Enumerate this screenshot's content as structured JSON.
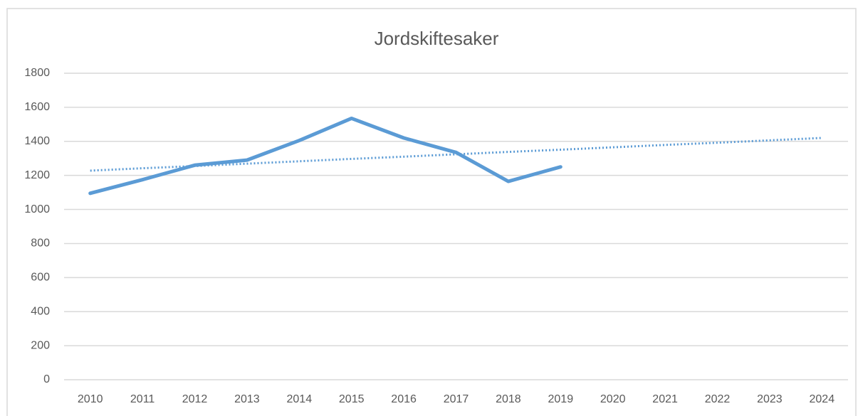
{
  "chart_data": {
    "type": "line",
    "title": "Jordskiftesaker",
    "categories": [
      "2010",
      "2011",
      "2012",
      "2013",
      "2014",
      "2015",
      "2016",
      "2017",
      "2018",
      "2019",
      "2020",
      "2021",
      "2022",
      "2023",
      "2024"
    ],
    "series": [
      {
        "color": "#5b9bd5",
        "line_style": "solid",
        "values": [
          1095,
          1175,
          1260,
          1290,
          1405,
          1535,
          1420,
          1335,
          1165,
          1250,
          null,
          null,
          null,
          null,
          null
        ]
      },
      {
        "color": "#5b9bd5",
        "line_style": "dotted",
        "values": [
          1228,
          1242,
          1255,
          1269,
          1283,
          1297,
          1310,
          1324,
          1338,
          1351,
          1365,
          1379,
          1392,
          1406,
          1420
        ]
      }
    ],
    "ylim": [
      0,
      1800
    ],
    "yticks": [
      0,
      200,
      400,
      600,
      800,
      1000,
      1200,
      1400,
      1600,
      1800
    ],
    "grid": true
  }
}
